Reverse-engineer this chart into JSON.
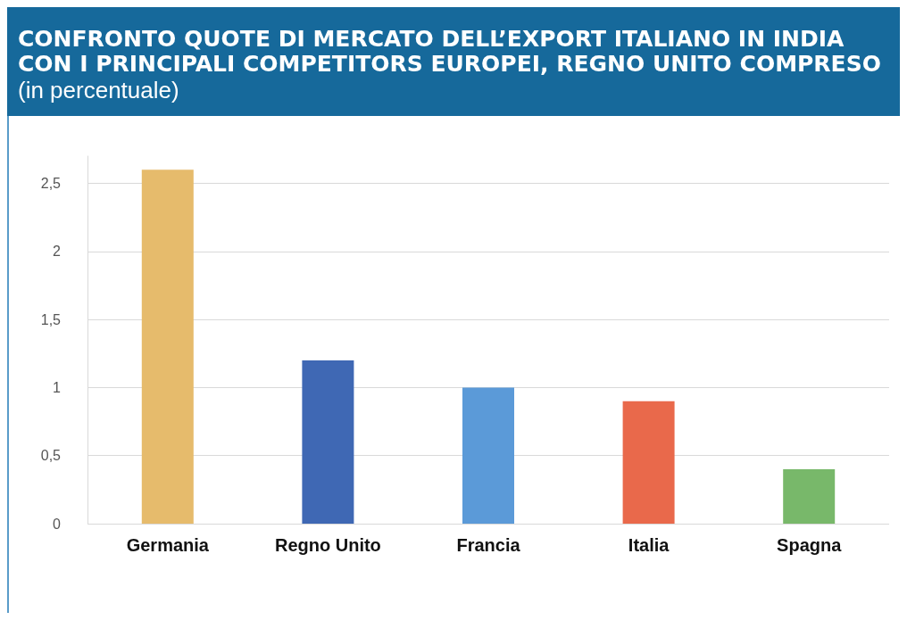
{
  "chart_data": {
    "type": "bar",
    "title": "CONFRONTO QUOTE DI MERCATO DELL’EXPORT ITALIANO IN INDIA CON I PRINCIPALI COMPETITORS EUROPEI, REGNO UNITO COMPRESO",
    "subtitle": "(in percentuale)",
    "categories": [
      "Germania",
      "Regno Unito",
      "Francia",
      "Italia",
      "Spagna"
    ],
    "values": [
      2.6,
      1.2,
      1.0,
      0.9,
      0.4
    ],
    "colors": [
      "#e6bb6c",
      "#3f68b4",
      "#5b9ad8",
      "#e9694b",
      "#78b86a"
    ],
    "ylim": [
      0,
      2.7
    ],
    "yticks": [
      0,
      {
        "value": 0.5,
        "label": "0,5"
      },
      1,
      {
        "value": 1.5,
        "label": "1,5"
      },
      2,
      {
        "value": 2.5,
        "label": "2,5"
      }
    ],
    "grid": "y"
  }
}
